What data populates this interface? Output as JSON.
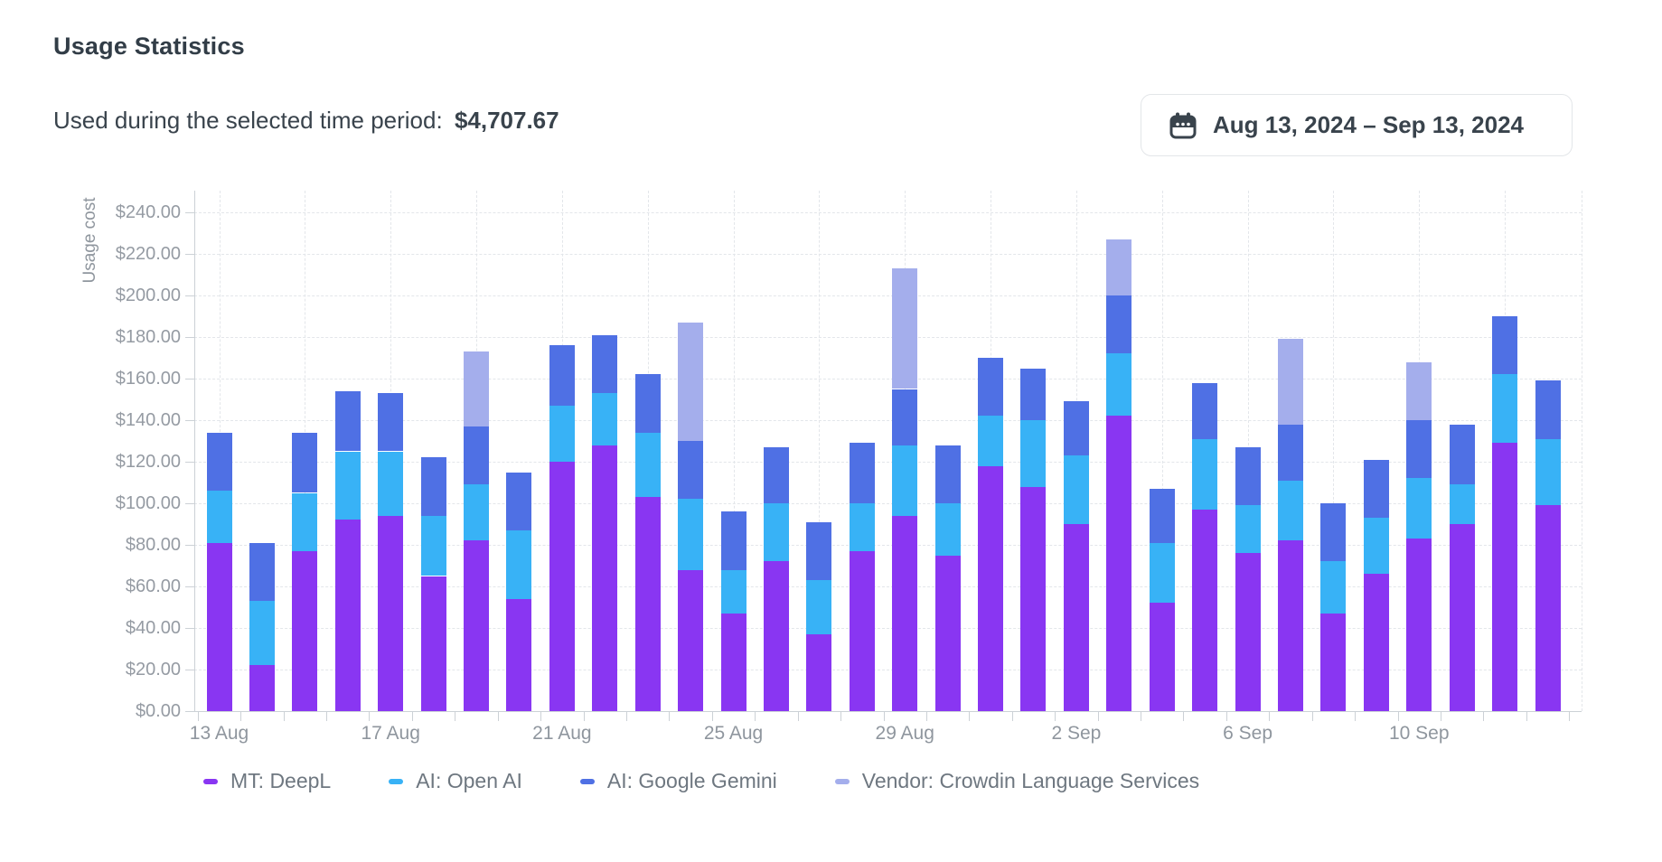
{
  "page": {
    "title": "Usage Statistics"
  },
  "summary": {
    "label": "Used during the selected time period:",
    "total": "$4,707.67"
  },
  "date_range": {
    "icon": "calendar-icon",
    "value": "Aug 13, 2024 – Sep 13, 2024"
  },
  "colors": {
    "deepl_purple": "#8936f2",
    "openai_cyan": "#38b2f6",
    "gemini_blue": "#4f70e4",
    "crowdin_lavender": "#a4aeec",
    "axis_text": "#959ba3",
    "legend_text": "#6e7780",
    "grid": "#e3e6ea",
    "axis_line": "#ccd1d6",
    "title_text": "#323d47",
    "button_border": "#e3e6e9"
  },
  "chart_data": {
    "type": "bar",
    "stacked": true,
    "title": "",
    "xlabel": "",
    "ylabel": "Usage cost",
    "ylim": [
      0,
      240
    ],
    "y_tick_step": 20,
    "y_tick_labels": [
      "$0.00",
      "$20.00",
      "$40.00",
      "$60.00",
      "$80.00",
      "$100.00",
      "$120.00",
      "$140.00",
      "$160.00",
      "$180.00",
      "$200.00",
      "$220.00",
      "$240.00"
    ],
    "grid": "dashed",
    "legend_position": "bottom",
    "categories": [
      "13 Aug",
      "14 Aug",
      "15 Aug",
      "16 Aug",
      "17 Aug",
      "18 Aug",
      "19 Aug",
      "20 Aug",
      "21 Aug",
      "22 Aug",
      "23 Aug",
      "24 Aug",
      "25 Aug",
      "26 Aug",
      "27 Aug",
      "28 Aug",
      "29 Aug",
      "30 Aug",
      "31 Aug",
      "1 Sep",
      "2 Sep",
      "3 Sep",
      "4 Sep",
      "5 Sep",
      "6 Sep",
      "7 Sep",
      "8 Sep",
      "9 Sep",
      "10 Sep",
      "11 Sep",
      "12 Sep",
      "13 Sep"
    ],
    "x_label_indices": [
      0,
      4,
      8,
      12,
      16,
      20,
      24,
      28
    ],
    "series": [
      {
        "name": "MT: DeepL",
        "color": "#8936f2",
        "values": [
          81,
          22,
          77,
          92,
          94,
          65,
          82,
          54,
          120,
          128,
          103,
          68,
          47,
          72,
          37,
          77,
          94,
          75,
          118,
          108,
          90,
          142,
          52,
          97,
          76,
          82,
          47,
          66,
          83,
          90,
          129,
          99
        ]
      },
      {
        "name": "AI: Open AI",
        "color": "#38b2f6",
        "values": [
          25,
          31,
          28,
          33,
          31,
          29,
          27,
          33,
          27,
          25,
          31,
          34,
          21,
          28,
          26,
          23,
          34,
          25,
          24,
          32,
          33,
          30,
          29,
          34,
          23,
          29,
          25,
          27,
          29,
          19,
          33,
          32
        ]
      },
      {
        "name": "AI: Google Gemini",
        "color": "#4f70e4",
        "values": [
          28,
          28,
          29,
          29,
          28,
          28,
          28,
          28,
          29,
          28,
          28,
          28,
          28,
          27,
          28,
          29,
          27,
          28,
          28,
          25,
          26,
          28,
          26,
          27,
          28,
          27,
          28,
          28,
          28,
          29,
          28,
          28
        ]
      },
      {
        "name": "Vendor: Crowdin Language Services",
        "color": "#a4aeec",
        "values": [
          0,
          0,
          0,
          0,
          0,
          0,
          36,
          0,
          0,
          0,
          0,
          57,
          0,
          0,
          0,
          0,
          58,
          0,
          0,
          0,
          0,
          27,
          0,
          0,
          0,
          41,
          0,
          0,
          28,
          0,
          0,
          0
        ]
      }
    ]
  }
}
